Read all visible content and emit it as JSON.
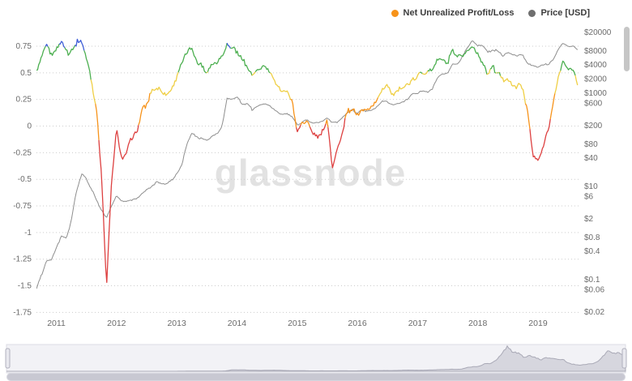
{
  "watermark": "glassnode",
  "legend": [
    {
      "label": "Net Unrealized Profit/Loss",
      "color": "#f7931a"
    },
    {
      "label": "Price [USD]",
      "color": "#6e6e6e"
    }
  ],
  "colors": {
    "grid": "#cccccc",
    "price_line": "#8e8e8e",
    "navigator_bg": "#f2f2f6",
    "navigator_fill": "#d6d6de",
    "navigator_line": "#a9a9b6",
    "navigator_outline": "#dcdce4"
  },
  "chart_data": {
    "type": "line",
    "title": "",
    "x_axis": {
      "labels": [
        "2011",
        "2012",
        "2013",
        "2014",
        "2015",
        "2016",
        "2017",
        "2018",
        "2019"
      ],
      "domain": [
        2010.67,
        2019.7
      ]
    },
    "left_axis": {
      "name": "Net Unrealized Profit/Loss",
      "ticks": [
        0.75,
        0.5,
        0.25,
        0,
        -0.25,
        -0.5,
        -0.75,
        -1,
        -1.25,
        -1.5,
        -1.75
      ],
      "min": -1.77,
      "max": 0.91,
      "grid": "dotted"
    },
    "right_axis": {
      "name": "Price [USD]",
      "scale": "log",
      "ticks": [
        20000,
        8000,
        4000,
        2000,
        1000,
        600,
        200,
        80,
        40,
        10,
        6,
        2,
        0.8,
        0.4,
        0.1,
        0.06,
        0.02
      ]
    },
    "bands": [
      {
        "min": 0.75,
        "color": "#3f5fd8"
      },
      {
        "min": 0.5,
        "color": "#4caf50"
      },
      {
        "min": 0.25,
        "color": "#efcf45"
      },
      {
        "min": 0,
        "color": "#f7931a"
      },
      {
        "min": -999,
        "color": "#dd4040"
      }
    ],
    "series_start_month": "2010-07",
    "series_step": "1 month",
    "series": [
      {
        "name": "Net Unrealized Profit/Loss",
        "values": [
          0.62,
          0.52,
          0.5,
          0.62,
          0.74,
          0.68,
          0.7,
          0.78,
          0.68,
          0.74,
          0.79,
          0.78,
          0.62,
          0.45,
          0.15,
          -0.45,
          -1.5,
          -0.55,
          -0.05,
          -0.3,
          -0.25,
          -0.12,
          -0.05,
          0.12,
          0.22,
          0.32,
          0.38,
          0.32,
          0.3,
          0.36,
          0.46,
          0.58,
          0.7,
          0.76,
          0.62,
          0.55,
          0.52,
          0.58,
          0.6,
          0.66,
          0.78,
          0.72,
          0.72,
          0.62,
          0.58,
          0.48,
          0.52,
          0.56,
          0.52,
          0.46,
          0.38,
          0.3,
          0.32,
          0.26,
          -0.08,
          0.02,
          0.06,
          -0.05,
          -0.08,
          -0.05,
          0.05,
          -0.38,
          -0.22,
          -0.05,
          0.12,
          0.18,
          0.1,
          0.16,
          0.16,
          0.2,
          0.25,
          0.38,
          0.38,
          0.3,
          0.33,
          0.36,
          0.4,
          0.46,
          0.46,
          0.52,
          0.5,
          0.54,
          0.65,
          0.64,
          0.6,
          0.7,
          0.64,
          0.66,
          0.72,
          0.76,
          0.66,
          0.6,
          0.5,
          0.54,
          0.5,
          0.42,
          0.46,
          0.4,
          0.38,
          0.36,
          0.1,
          -0.28,
          -0.32,
          -0.2,
          -0.05,
          0.2,
          0.45,
          0.6,
          0.52,
          0.5,
          0.38
        ]
      },
      {
        "name": "Price [USD]",
        "unit": "USD",
        "values": [
          0.06,
          0.07,
          0.06,
          0.12,
          0.25,
          0.25,
          0.45,
          0.9,
          0.8,
          1.8,
          8,
          18,
          14,
          9,
          5,
          3.2,
          2.2,
          4,
          6.2,
          4.9,
          4.9,
          5,
          5.1,
          6.6,
          8.5,
          10.5,
          12.2,
          11.2,
          11,
          13.3,
          19,
          30,
          75,
          140,
          120,
          100,
          95,
          115,
          130,
          190,
          800,
          730,
          810,
          620,
          570,
          450,
          550,
          600,
          600,
          500,
          400,
          350,
          370,
          320,
          215,
          245,
          260,
          230,
          235,
          245,
          280,
          230,
          235,
          290,
          370,
          430,
          390,
          430,
          415,
          450,
          510,
          660,
          660,
          580,
          610,
          680,
          740,
          950,
          960,
          1150,
          1100,
          1300,
          2200,
          2500,
          2700,
          4400,
          4200,
          6100,
          9800,
          14000,
          10500,
          10200,
          7500,
          8900,
          7500,
          6400,
          7700,
          7000,
          6600,
          6350,
          4300,
          3800,
          3500,
          3850,
          4100,
          5300,
          8500,
          11500,
          10000,
          10200,
          8300
        ]
      }
    ],
    "navigator": {
      "series_ref": "Price [USD]",
      "scale": "linear"
    }
  }
}
